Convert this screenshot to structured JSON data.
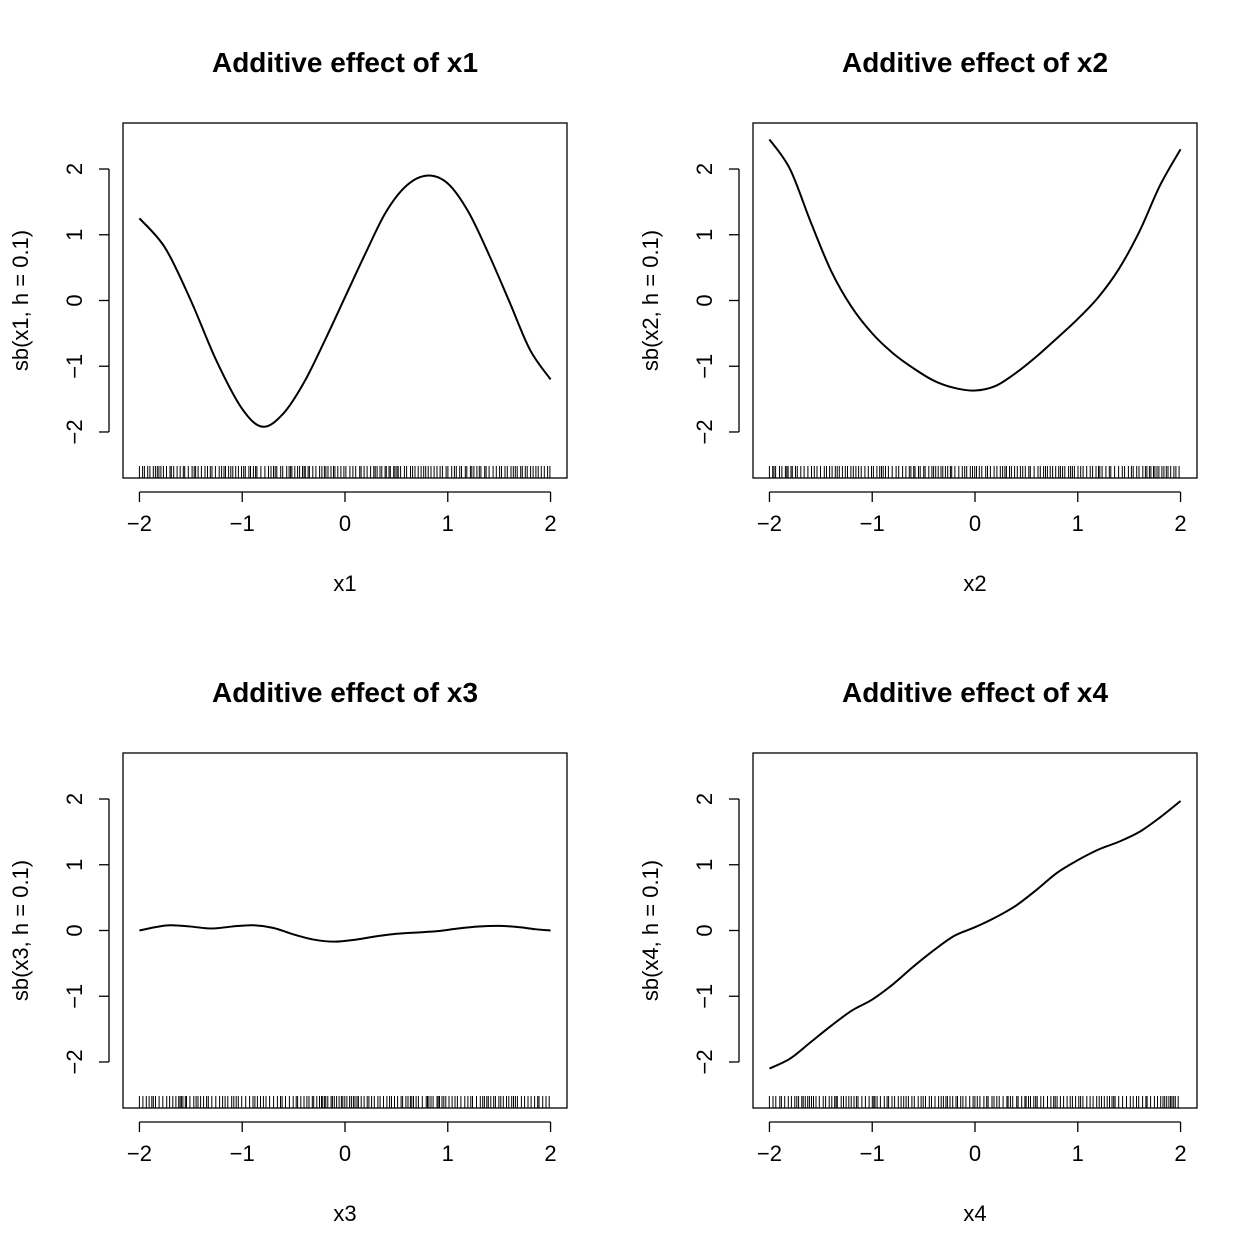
{
  "chart_data": [
    {
      "type": "line",
      "title": "Additive effect of x1",
      "xlabel": "x1",
      "ylabel": "sb(x1, h = 0.1)",
      "xlim": [
        -2,
        2
      ],
      "ylim": [
        -2.7,
        2.7
      ],
      "x_ticks": [
        -2,
        -1,
        0,
        1,
        2
      ],
      "x_tick_labels": [
        "−2",
        "−1",
        "0",
        "1",
        "2"
      ],
      "y_ticks": [
        -2,
        -1,
        0,
        1,
        2
      ],
      "y_tick_labels": [
        "−2",
        "−1",
        "0",
        "1",
        "2"
      ],
      "grid": false,
      "rug": true,
      "x": [
        -2.0,
        -1.75,
        -1.5,
        -1.25,
        -1.0,
        -0.8,
        -0.6,
        -0.4,
        -0.2,
        0.0,
        0.2,
        0.4,
        0.6,
        0.8,
        1.0,
        1.2,
        1.4,
        1.6,
        1.8,
        2.0
      ],
      "y": [
        1.25,
        0.8,
        0.0,
        -0.92,
        -1.65,
        -1.92,
        -1.72,
        -1.25,
        -0.62,
        0.05,
        0.72,
        1.35,
        1.75,
        1.9,
        1.78,
        1.35,
        0.7,
        -0.02,
        -0.75,
        -1.2
      ]
    },
    {
      "type": "line",
      "title": "Additive effect of x2",
      "xlabel": "x2",
      "ylabel": "sb(x2, h = 0.1)",
      "xlim": [
        -2,
        2
      ],
      "ylim": [
        -2.7,
        2.7
      ],
      "x_ticks": [
        -2,
        -1,
        0,
        1,
        2
      ],
      "x_tick_labels": [
        "−2",
        "−1",
        "0",
        "1",
        "2"
      ],
      "y_ticks": [
        -2,
        -1,
        0,
        1,
        2
      ],
      "y_tick_labels": [
        "−2",
        "−1",
        "0",
        "1",
        "2"
      ],
      "grid": false,
      "rug": true,
      "x": [
        -2.0,
        -1.8,
        -1.6,
        -1.4,
        -1.2,
        -1.0,
        -0.8,
        -0.6,
        -0.4,
        -0.2,
        0.0,
        0.2,
        0.4,
        0.6,
        0.8,
        1.0,
        1.2,
        1.4,
        1.6,
        1.8,
        2.0
      ],
      "y": [
        2.45,
        2.0,
        1.2,
        0.45,
        -0.1,
        -0.5,
        -0.8,
        -1.03,
        -1.22,
        -1.33,
        -1.37,
        -1.3,
        -1.1,
        -0.85,
        -0.57,
        -0.28,
        0.05,
        0.48,
        1.05,
        1.75,
        2.3
      ]
    },
    {
      "type": "line",
      "title": "Additive effect of x3",
      "xlabel": "x3",
      "ylabel": "sb(x3, h = 0.1)",
      "xlim": [
        -2,
        2
      ],
      "ylim": [
        -2.7,
        2.7
      ],
      "x_ticks": [
        -2,
        -1,
        0,
        1,
        2
      ],
      "x_tick_labels": [
        "−2",
        "−1",
        "0",
        "1",
        "2"
      ],
      "y_ticks": [
        -2,
        -1,
        0,
        1,
        2
      ],
      "y_tick_labels": [
        "−2",
        "−1",
        "0",
        "1",
        "2"
      ],
      "grid": false,
      "rug": true,
      "x": [
        -2.0,
        -1.85,
        -1.7,
        -1.5,
        -1.3,
        -1.1,
        -0.9,
        -0.7,
        -0.5,
        -0.3,
        -0.1,
        0.1,
        0.3,
        0.5,
        0.7,
        0.9,
        1.1,
        1.3,
        1.5,
        1.7,
        1.85,
        2.0
      ],
      "y": [
        0.0,
        0.05,
        0.08,
        0.06,
        0.03,
        0.06,
        0.08,
        0.04,
        -0.06,
        -0.14,
        -0.17,
        -0.14,
        -0.09,
        -0.05,
        -0.03,
        -0.01,
        0.03,
        0.06,
        0.07,
        0.05,
        0.02,
        0.0
      ]
    },
    {
      "type": "line",
      "title": "Additive effect of x4",
      "xlabel": "x4",
      "ylabel": "sb(x4, h = 0.1)",
      "xlim": [
        -2,
        2
      ],
      "ylim": [
        -2.7,
        2.7
      ],
      "x_ticks": [
        -2,
        -1,
        0,
        1,
        2
      ],
      "x_tick_labels": [
        "−2",
        "−1",
        "0",
        "1",
        "2"
      ],
      "y_ticks": [
        -2,
        -1,
        0,
        1,
        2
      ],
      "y_tick_labels": [
        "−2",
        "−1",
        "0",
        "1",
        "2"
      ],
      "grid": false,
      "rug": true,
      "x": [
        -2.0,
        -1.8,
        -1.6,
        -1.4,
        -1.2,
        -1.0,
        -0.8,
        -0.6,
        -0.4,
        -0.2,
        0.0,
        0.2,
        0.4,
        0.6,
        0.8,
        1.0,
        1.2,
        1.4,
        1.6,
        1.8,
        2.0
      ],
      "y": [
        -2.1,
        -1.95,
        -1.7,
        -1.45,
        -1.22,
        -1.05,
        -0.82,
        -0.55,
        -0.3,
        -0.08,
        0.05,
        0.2,
        0.38,
        0.62,
        0.88,
        1.07,
        1.23,
        1.35,
        1.5,
        1.72,
        1.97
      ]
    }
  ]
}
